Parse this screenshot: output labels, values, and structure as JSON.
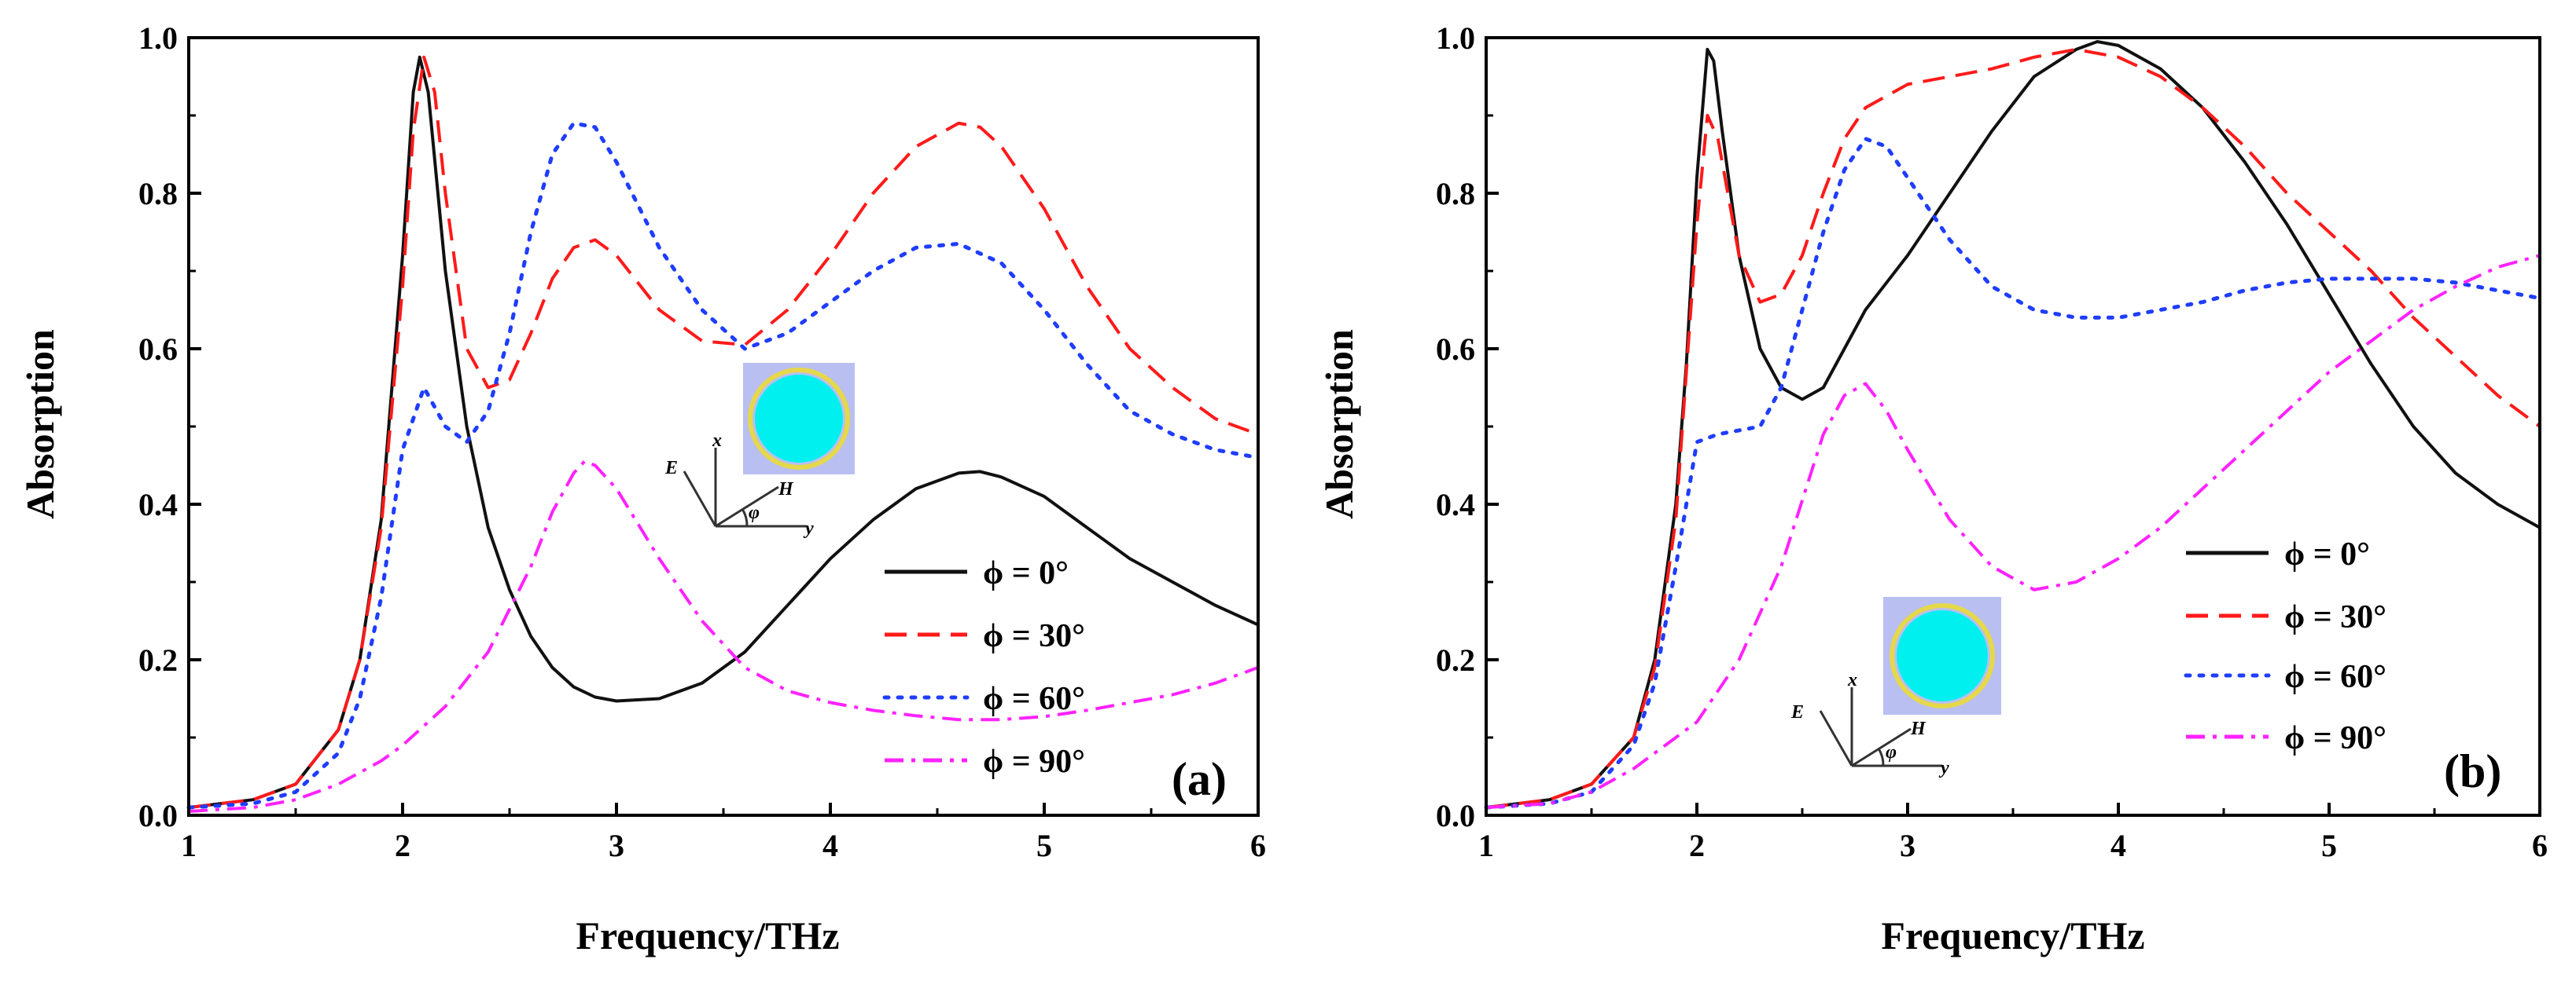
{
  "figure": {
    "colors": {
      "phi0": "#111111",
      "phi30": "#ff1a1a",
      "phi60": "#1f3dff",
      "phi90": "#ff22ff",
      "inset_bg": "#b9bff0",
      "inset_ring": "#e5d84a",
      "inset_disk": "#00f0f0"
    }
  },
  "chart_data": [
    {
      "type": "line",
      "panel_label": "(a)",
      "xlabel": "Frequency/THz",
      "ylabel": "Absorption",
      "xlim": [
        1,
        6
      ],
      "ylim": [
        0,
        1
      ],
      "xticks": [
        "1",
        "2",
        "3",
        "4",
        "5",
        "6"
      ],
      "yticks": [
        "0.0",
        "0.2",
        "0.4",
        "0.6",
        "0.8",
        "1.0"
      ],
      "legend_position": "bottom-right",
      "inset_axes": {
        "e": "E",
        "x": "x",
        "h": "H",
        "phi": "φ",
        "y": "y"
      },
      "series": [
        {
          "name": "ϕ = 0°",
          "color_key": "phi0",
          "dash": "solid",
          "points": [
            [
              1.0,
              0.01
            ],
            [
              1.3,
              0.02
            ],
            [
              1.5,
              0.04
            ],
            [
              1.7,
              0.11
            ],
            [
              1.8,
              0.2
            ],
            [
              1.9,
              0.38
            ],
            [
              2.0,
              0.72
            ],
            [
              2.05,
              0.93
            ],
            [
              2.08,
              0.975
            ],
            [
              2.12,
              0.93
            ],
            [
              2.2,
              0.7
            ],
            [
              2.3,
              0.5
            ],
            [
              2.4,
              0.37
            ],
            [
              2.5,
              0.29
            ],
            [
              2.6,
              0.23
            ],
            [
              2.7,
              0.19
            ],
            [
              2.8,
              0.165
            ],
            [
              2.9,
              0.152
            ],
            [
              3.0,
              0.147
            ],
            [
              3.2,
              0.15
            ],
            [
              3.4,
              0.17
            ],
            [
              3.6,
              0.21
            ],
            [
              3.8,
              0.27
            ],
            [
              4.0,
              0.33
            ],
            [
              4.2,
              0.38
            ],
            [
              4.4,
              0.42
            ],
            [
              4.6,
              0.44
            ],
            [
              4.7,
              0.442
            ],
            [
              4.8,
              0.435
            ],
            [
              5.0,
              0.41
            ],
            [
              5.2,
              0.37
            ],
            [
              5.4,
              0.33
            ],
            [
              5.6,
              0.3
            ],
            [
              5.8,
              0.27
            ],
            [
              6.0,
              0.245
            ]
          ]
        },
        {
          "name": "ϕ = 30°",
          "color_key": "phi30",
          "dash": "dashed",
          "points": [
            [
              1.0,
              0.01
            ],
            [
              1.3,
              0.02
            ],
            [
              1.5,
              0.04
            ],
            [
              1.7,
              0.11
            ],
            [
              1.8,
              0.2
            ],
            [
              1.9,
              0.37
            ],
            [
              2.0,
              0.68
            ],
            [
              2.05,
              0.88
            ],
            [
              2.1,
              0.975
            ],
            [
              2.15,
              0.93
            ],
            [
              2.2,
              0.8
            ],
            [
              2.3,
              0.6
            ],
            [
              2.4,
              0.55
            ],
            [
              2.5,
              0.56
            ],
            [
              2.6,
              0.62
            ],
            [
              2.7,
              0.69
            ],
            [
              2.8,
              0.73
            ],
            [
              2.9,
              0.74
            ],
            [
              3.0,
              0.72
            ],
            [
              3.2,
              0.65
            ],
            [
              3.4,
              0.61
            ],
            [
              3.6,
              0.605
            ],
            [
              3.8,
              0.65
            ],
            [
              4.0,
              0.72
            ],
            [
              4.2,
              0.8
            ],
            [
              4.4,
              0.86
            ],
            [
              4.6,
              0.89
            ],
            [
              4.7,
              0.885
            ],
            [
              4.8,
              0.86
            ],
            [
              5.0,
              0.78
            ],
            [
              5.2,
              0.68
            ],
            [
              5.4,
              0.6
            ],
            [
              5.6,
              0.55
            ],
            [
              5.8,
              0.51
            ],
            [
              6.0,
              0.49
            ]
          ]
        },
        {
          "name": "ϕ = 60°",
          "color_key": "phi60",
          "dash": "dotted",
          "points": [
            [
              1.0,
              0.01
            ],
            [
              1.3,
              0.015
            ],
            [
              1.5,
              0.03
            ],
            [
              1.7,
              0.08
            ],
            [
              1.8,
              0.15
            ],
            [
              1.9,
              0.28
            ],
            [
              2.0,
              0.47
            ],
            [
              2.1,
              0.55
            ],
            [
              2.2,
              0.5
            ],
            [
              2.3,
              0.48
            ],
            [
              2.4,
              0.52
            ],
            [
              2.5,
              0.62
            ],
            [
              2.6,
              0.75
            ],
            [
              2.7,
              0.85
            ],
            [
              2.8,
              0.89
            ],
            [
              2.9,
              0.885
            ],
            [
              3.0,
              0.84
            ],
            [
              3.2,
              0.73
            ],
            [
              3.4,
              0.65
            ],
            [
              3.6,
              0.6
            ],
            [
              3.8,
              0.62
            ],
            [
              4.0,
              0.66
            ],
            [
              4.2,
              0.7
            ],
            [
              4.4,
              0.73
            ],
            [
              4.6,
              0.735
            ],
            [
              4.8,
              0.71
            ],
            [
              5.0,
              0.65
            ],
            [
              5.2,
              0.58
            ],
            [
              5.4,
              0.52
            ],
            [
              5.6,
              0.49
            ],
            [
              5.8,
              0.47
            ],
            [
              6.0,
              0.46
            ]
          ]
        },
        {
          "name": "ϕ = 90°",
          "color_key": "phi90",
          "dash": "dashdot",
          "points": [
            [
              1.0,
              0.005
            ],
            [
              1.3,
              0.01
            ],
            [
              1.5,
              0.02
            ],
            [
              1.7,
              0.04
            ],
            [
              1.9,
              0.07
            ],
            [
              2.0,
              0.09
            ],
            [
              2.2,
              0.14
            ],
            [
              2.4,
              0.21
            ],
            [
              2.6,
              0.32
            ],
            [
              2.7,
              0.39
            ],
            [
              2.8,
              0.44
            ],
            [
              2.85,
              0.455
            ],
            [
              2.9,
              0.45
            ],
            [
              3.0,
              0.42
            ],
            [
              3.2,
              0.33
            ],
            [
              3.4,
              0.25
            ],
            [
              3.6,
              0.19
            ],
            [
              3.8,
              0.16
            ],
            [
              4.0,
              0.145
            ],
            [
              4.2,
              0.135
            ],
            [
              4.4,
              0.128
            ],
            [
              4.6,
              0.123
            ],
            [
              4.8,
              0.123
            ],
            [
              5.0,
              0.127
            ],
            [
              5.2,
              0.135
            ],
            [
              5.4,
              0.145
            ],
            [
              5.6,
              0.155
            ],
            [
              5.8,
              0.17
            ],
            [
              6.0,
              0.19
            ]
          ]
        }
      ]
    },
    {
      "type": "line",
      "panel_label": "(b)",
      "xlabel": "Frequency/THz",
      "ylabel": "Absorption",
      "xlim": [
        1,
        6
      ],
      "ylim": [
        0,
        1
      ],
      "xticks": [
        "1",
        "2",
        "3",
        "4",
        "5",
        "6"
      ],
      "yticks": [
        "0.0",
        "0.2",
        "0.4",
        "0.6",
        "0.8",
        "1.0"
      ],
      "legend_position": "right",
      "inset_axes": {
        "e": "E",
        "x": "x",
        "h": "H",
        "phi": "φ",
        "y": "y"
      },
      "series": [
        {
          "name": "ϕ = 0°",
          "color_key": "phi0",
          "dash": "solid",
          "points": [
            [
              1.0,
              0.01
            ],
            [
              1.3,
              0.02
            ],
            [
              1.5,
              0.04
            ],
            [
              1.7,
              0.1
            ],
            [
              1.8,
              0.2
            ],
            [
              1.9,
              0.4
            ],
            [
              1.95,
              0.58
            ],
            [
              2.0,
              0.82
            ],
            [
              2.05,
              0.985
            ],
            [
              2.08,
              0.97
            ],
            [
              2.12,
              0.88
            ],
            [
              2.2,
              0.72
            ],
            [
              2.3,
              0.6
            ],
            [
              2.4,
              0.55
            ],
            [
              2.5,
              0.535
            ],
            [
              2.6,
              0.55
            ],
            [
              2.7,
              0.6
            ],
            [
              2.8,
              0.65
            ],
            [
              3.0,
              0.72
            ],
            [
              3.2,
              0.8
            ],
            [
              3.4,
              0.88
            ],
            [
              3.6,
              0.95
            ],
            [
              3.8,
              0.985
            ],
            [
              3.9,
              0.995
            ],
            [
              4.0,
              0.99
            ],
            [
              4.2,
              0.96
            ],
            [
              4.4,
              0.91
            ],
            [
              4.6,
              0.84
            ],
            [
              4.8,
              0.76
            ],
            [
              5.0,
              0.67
            ],
            [
              5.2,
              0.58
            ],
            [
              5.4,
              0.5
            ],
            [
              5.6,
              0.44
            ],
            [
              5.8,
              0.4
            ],
            [
              6.0,
              0.37
            ]
          ]
        },
        {
          "name": "ϕ = 30°",
          "color_key": "phi30",
          "dash": "dashed",
          "points": [
            [
              1.0,
              0.01
            ],
            [
              1.3,
              0.02
            ],
            [
              1.5,
              0.04
            ],
            [
              1.7,
              0.1
            ],
            [
              1.8,
              0.19
            ],
            [
              1.9,
              0.38
            ],
            [
              2.0,
              0.76
            ],
            [
              2.05,
              0.9
            ],
            [
              2.1,
              0.87
            ],
            [
              2.2,
              0.72
            ],
            [
              2.3,
              0.66
            ],
            [
              2.4,
              0.67
            ],
            [
              2.5,
              0.72
            ],
            [
              2.6,
              0.8
            ],
            [
              2.7,
              0.87
            ],
            [
              2.8,
              0.91
            ],
            [
              3.0,
              0.94
            ],
            [
              3.2,
              0.95
            ],
            [
              3.4,
              0.96
            ],
            [
              3.6,
              0.975
            ],
            [
              3.8,
              0.985
            ],
            [
              4.0,
              0.975
            ],
            [
              4.2,
              0.95
            ],
            [
              4.4,
              0.91
            ],
            [
              4.6,
              0.86
            ],
            [
              4.8,
              0.8
            ],
            [
              5.0,
              0.75
            ],
            [
              5.2,
              0.7
            ],
            [
              5.4,
              0.64
            ],
            [
              5.6,
              0.59
            ],
            [
              5.8,
              0.54
            ],
            [
              6.0,
              0.5
            ]
          ]
        },
        {
          "name": "ϕ = 60°",
          "color_key": "phi60",
          "dash": "dotted",
          "points": [
            [
              1.0,
              0.01
            ],
            [
              1.3,
              0.015
            ],
            [
              1.5,
              0.03
            ],
            [
              1.7,
              0.09
            ],
            [
              1.8,
              0.17
            ],
            [
              1.9,
              0.32
            ],
            [
              2.0,
              0.48
            ],
            [
              2.1,
              0.49
            ],
            [
              2.3,
              0.5
            ],
            [
              2.4,
              0.55
            ],
            [
              2.5,
              0.65
            ],
            [
              2.6,
              0.75
            ],
            [
              2.7,
              0.83
            ],
            [
              2.8,
              0.87
            ],
            [
              2.9,
              0.86
            ],
            [
              3.0,
              0.82
            ],
            [
              3.2,
              0.74
            ],
            [
              3.4,
              0.68
            ],
            [
              3.6,
              0.65
            ],
            [
              3.8,
              0.64
            ],
            [
              4.0,
              0.64
            ],
            [
              4.2,
              0.65
            ],
            [
              4.4,
              0.66
            ],
            [
              4.6,
              0.675
            ],
            [
              4.8,
              0.685
            ],
            [
              5.0,
              0.69
            ],
            [
              5.2,
              0.69
            ],
            [
              5.4,
              0.69
            ],
            [
              5.6,
              0.685
            ],
            [
              5.8,
              0.675
            ],
            [
              6.0,
              0.665
            ]
          ]
        },
        {
          "name": "ϕ = 90°",
          "color_key": "phi90",
          "dash": "dashdot",
          "points": [
            [
              1.0,
              0.01
            ],
            [
              1.3,
              0.015
            ],
            [
              1.5,
              0.03
            ],
            [
              1.7,
              0.06
            ],
            [
              1.9,
              0.1
            ],
            [
              2.0,
              0.12
            ],
            [
              2.2,
              0.2
            ],
            [
              2.4,
              0.32
            ],
            [
              2.6,
              0.49
            ],
            [
              2.7,
              0.54
            ],
            [
              2.8,
              0.555
            ],
            [
              2.9,
              0.52
            ],
            [
              3.0,
              0.47
            ],
            [
              3.2,
              0.38
            ],
            [
              3.4,
              0.32
            ],
            [
              3.6,
              0.29
            ],
            [
              3.8,
              0.3
            ],
            [
              4.0,
              0.33
            ],
            [
              4.2,
              0.37
            ],
            [
              4.4,
              0.42
            ],
            [
              4.6,
              0.47
            ],
            [
              4.8,
              0.52
            ],
            [
              5.0,
              0.57
            ],
            [
              5.2,
              0.61
            ],
            [
              5.4,
              0.65
            ],
            [
              5.6,
              0.68
            ],
            [
              5.8,
              0.705
            ],
            [
              6.0,
              0.72
            ]
          ]
        }
      ]
    }
  ]
}
